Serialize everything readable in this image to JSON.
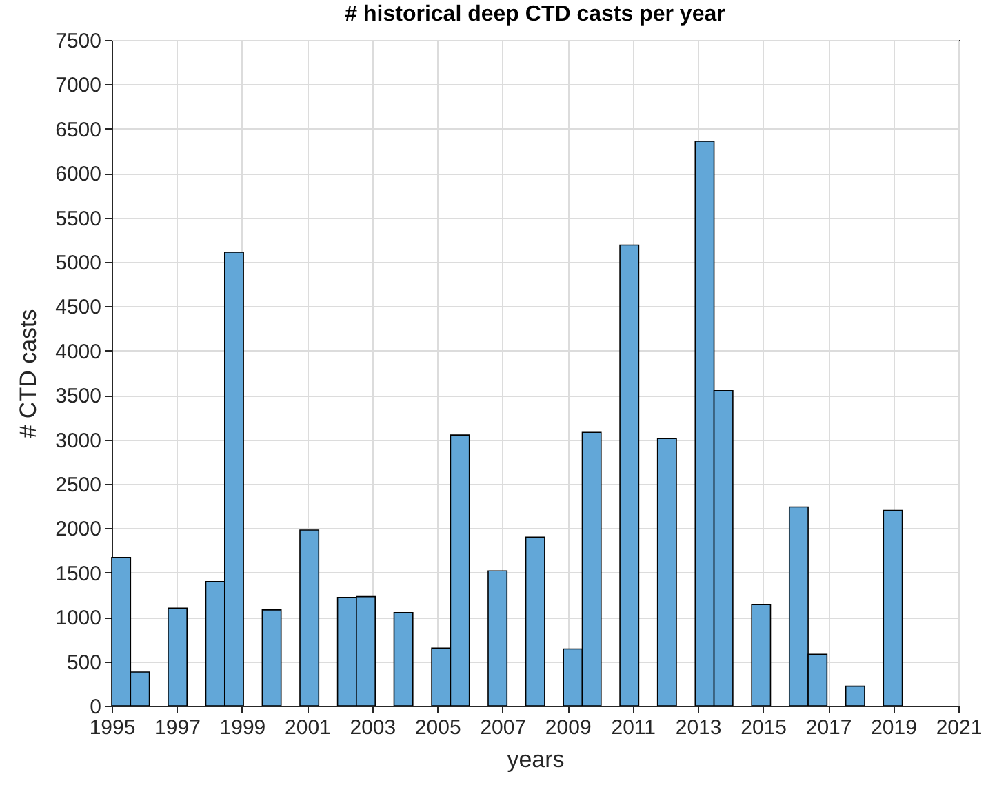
{
  "chart_data": {
    "type": "histogram",
    "title": "# historical deep CTD casts per year",
    "xlabel": "years",
    "ylabel": "# CTD casts",
    "bins": [
      1995,
      1995.578,
      1996.156,
      1996.734,
      1997.312,
      1997.89,
      1998.468,
      1999.046,
      1999.624,
      2000.202,
      2000.78,
      2001.358,
      2001.936,
      2002.514,
      2003.092,
      2003.67,
      2004.248,
      2004.826,
      2005.404,
      2005.982,
      2006.56,
      2007.138,
      2007.716,
      2008.294,
      2008.872,
      2009.45,
      2010.028,
      2010.606,
      2011.184,
      2011.762,
      2012.34,
      2012.918,
      2013.496,
      2014.074,
      2014.652,
      2015.23,
      2015.808,
      2016.386,
      2016.964,
      2017.542,
      2018.12,
      2018.698,
      2019.276
    ],
    "values": [
      1670,
      380,
      0,
      1100,
      0,
      1400,
      5110,
      0,
      1080,
      0,
      1980,
      0,
      1220,
      1230,
      0,
      1050,
      0,
      650,
      3050,
      0,
      1520,
      0,
      1900,
      0,
      640,
      3080,
      0,
      5190,
      0,
      3010,
      0,
      6360,
      3550,
      0,
      1140,
      0,
      2240,
      580,
      0,
      220,
      0,
      2200
    ],
    "color": "#62a7d8",
    "xlim": [
      1995,
      2021
    ],
    "xticks": [
      1995,
      1997,
      1999,
      2001,
      2003,
      2005,
      2007,
      2009,
      2011,
      2013,
      2015,
      2017,
      2019,
      2021
    ],
    "ylim": [
      0,
      7500
    ],
    "yticks": [
      0,
      500,
      1000,
      1500,
      2000,
      2500,
      3000,
      3500,
      4000,
      4500,
      5000,
      5500,
      6000,
      6500,
      7000,
      7500
    ],
    "grid": true
  }
}
